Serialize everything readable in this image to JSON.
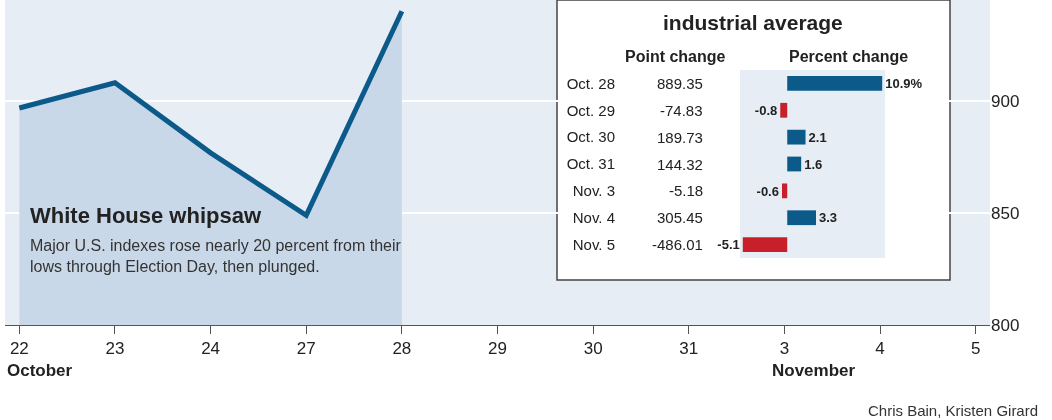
{
  "chart_data": [
    {
      "type": "area",
      "title": "White House whipsaw",
      "subtitle": "Major U.S. indexes rose nearly 20 percent from their lows through Election Day, then plunged.",
      "categories": [
        "22",
        "23",
        "24",
        "27",
        "28",
        "29",
        "30",
        "31",
        "3",
        "4",
        "5"
      ],
      "values": [
        896.8,
        908.1,
        876.8,
        848.9,
        940,
        null,
        null,
        null,
        null,
        null,
        null
      ],
      "color": "#0b5a8a",
      "ylim": [
        800,
        945
      ],
      "yticks": [
        800,
        850,
        900
      ],
      "grid": "y",
      "annotations": [
        "October",
        "November",
        "Chris Bain, Kristen Girard"
      ]
    },
    {
      "type": "bar",
      "orientation": "horizontal",
      "title": "industrial average",
      "categories": [
        "Oct. 28",
        "Oct. 29",
        "Oct. 30",
        "Oct. 31",
        "Nov. 3",
        "Nov. 4",
        "Nov. 5"
      ],
      "series": [
        {
          "name": "Percent change",
          "values": [
            10.9,
            -0.8,
            2.1,
            1.6,
            -0.6,
            3.3,
            -5.1
          ],
          "colors": [
            "#0b5a8a",
            "#c8202a",
            "#0b5a8a",
            "#0b5a8a",
            "#c8202a",
            "#0b5a8a",
            "#c8202a"
          ],
          "value_labels": [
            "10.9%",
            "-0.8",
            "2.1",
            "1.6",
            "-0.6",
            "3.3",
            "-5.1"
          ]
        }
      ],
      "annotations": [
        "Point change",
        "889.35",
        "-74.83",
        "189.73",
        "144.32",
        "-5.18",
        "305.45",
        "-486.01"
      ]
    }
  ]
}
